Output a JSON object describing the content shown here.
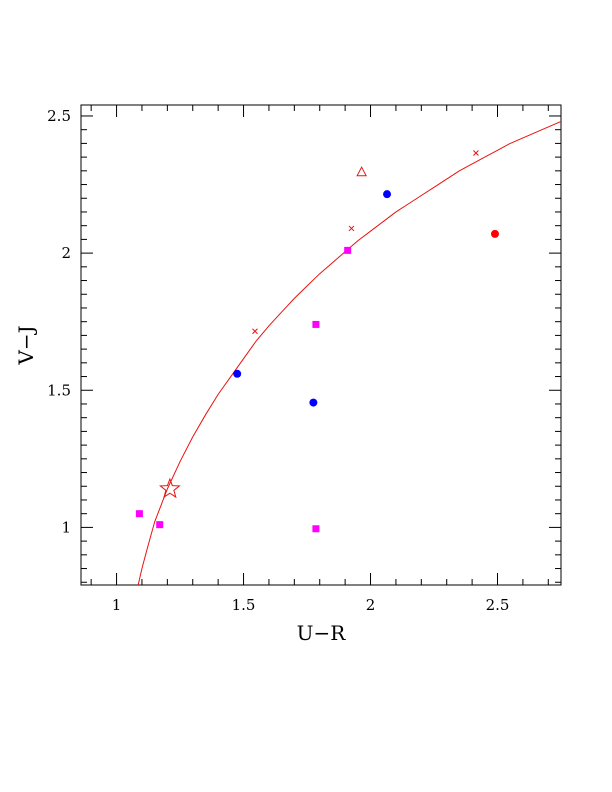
{
  "chart_data": {
    "type": "scatter",
    "xlabel": "U−R",
    "ylabel": "V−J",
    "xlim": [
      0.86,
      2.75
    ],
    "ylim": [
      0.79,
      2.54
    ],
    "x_ticks": [
      {
        "value": 1,
        "label": "1"
      },
      {
        "value": 1.5,
        "label": "1.5"
      },
      {
        "value": 2,
        "label": "2"
      },
      {
        "value": 2.5,
        "label": "2.5"
      }
    ],
    "y_ticks": [
      {
        "value": 1,
        "label": "1"
      },
      {
        "value": 1.5,
        "label": "1.5"
      },
      {
        "value": 2,
        "label": "2"
      },
      {
        "value": 2.5,
        "label": "2.5"
      }
    ],
    "curve": {
      "color": "#e8130f",
      "points": [
        [
          1.085,
          0.79
        ],
        [
          1.1,
          0.85
        ],
        [
          1.12,
          0.92
        ],
        [
          1.15,
          1.02
        ],
        [
          1.2,
          1.14
        ],
        [
          1.25,
          1.24
        ],
        [
          1.3,
          1.33
        ],
        [
          1.35,
          1.41
        ],
        [
          1.4,
          1.485
        ],
        [
          1.45,
          1.55
        ],
        [
          1.5,
          1.615
        ],
        [
          1.55,
          1.68
        ],
        [
          1.6,
          1.735
        ],
        [
          1.65,
          1.785
        ],
        [
          1.7,
          1.835
        ],
        [
          1.75,
          1.88
        ],
        [
          1.8,
          1.925
        ],
        [
          1.85,
          1.965
        ],
        [
          1.9,
          2.005
        ],
        [
          1.95,
          2.045
        ],
        [
          2.0,
          2.08
        ],
        [
          2.05,
          2.115
        ],
        [
          2.1,
          2.15
        ],
        [
          2.15,
          2.18
        ],
        [
          2.2,
          2.21
        ],
        [
          2.25,
          2.24
        ],
        [
          2.3,
          2.27
        ],
        [
          2.35,
          2.3
        ],
        [
          2.4,
          2.325
        ],
        [
          2.45,
          2.35
        ],
        [
          2.5,
          2.375
        ],
        [
          2.55,
          2.4
        ],
        [
          2.6,
          2.42
        ],
        [
          2.65,
          2.44
        ],
        [
          2.7,
          2.46
        ],
        [
          2.75,
          2.48
        ]
      ],
      "cross_markers": [
        [
          1.545,
          1.715
        ],
        [
          1.925,
          2.09
        ],
        [
          2.415,
          2.365
        ]
      ]
    },
    "series": [
      {
        "marker": "square",
        "color": "#ff00ff",
        "points": [
          [
            1.09,
            1.05
          ],
          [
            1.17,
            1.01
          ],
          [
            1.785,
            1.74
          ],
          [
            1.91,
            2.01
          ],
          [
            1.785,
            0.995
          ]
        ]
      },
      {
        "marker": "circle",
        "color": "#0000ff",
        "points": [
          [
            1.475,
            1.56
          ],
          [
            1.775,
            1.455
          ],
          [
            2.065,
            2.215
          ]
        ]
      },
      {
        "marker": "circle",
        "color": "#ff0000",
        "points": [
          [
            2.49,
            2.07
          ]
        ]
      },
      {
        "marker": "triangle-open",
        "color": "#e8130f",
        "points": [
          [
            1.965,
            2.295
          ]
        ]
      },
      {
        "marker": "star-open",
        "color": "#e8130f",
        "points": [
          [
            1.21,
            1.14
          ]
        ]
      }
    ]
  }
}
